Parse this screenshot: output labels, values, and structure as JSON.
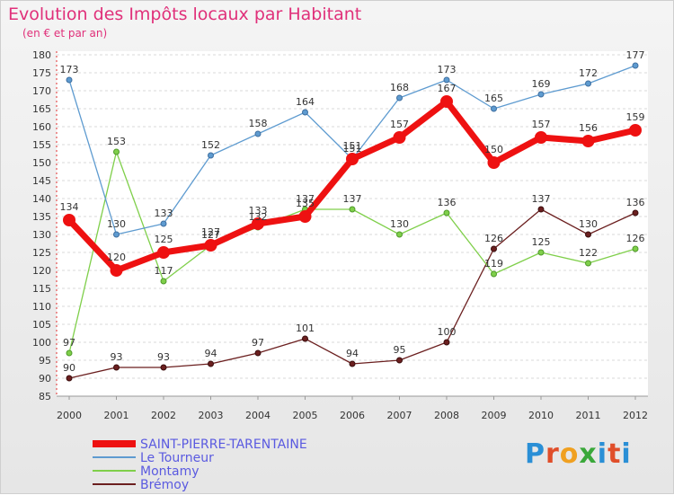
{
  "title": "Evolution des Impôts locaux par Habitant",
  "subtitle": "(en € et par an)",
  "logo": "Proxiti",
  "chart_data": {
    "type": "line",
    "title": "Evolution des Impôts locaux par Habitant",
    "subtitle": "(en € et par an)",
    "xlabel": "",
    "ylabel": "",
    "ylim": [
      85,
      180
    ],
    "yticks": [
      85,
      90,
      95,
      100,
      105,
      110,
      115,
      120,
      125,
      130,
      135,
      140,
      145,
      150,
      155,
      160,
      165,
      170,
      175,
      180
    ],
    "categories": [
      "2000",
      "2001",
      "2002",
      "2003",
      "2004",
      "2005",
      "2006",
      "2007",
      "2008",
      "2009",
      "2010",
      "2011",
      "2012"
    ],
    "series": [
      {
        "name": "SAINT-PIERRE-TARENTAINE",
        "color": "#ee1111",
        "values": [
          134,
          120,
          125,
          127,
          133,
          135,
          151,
          157,
          167,
          150,
          157,
          156,
          159
        ]
      },
      {
        "name": "Le Tourneur",
        "color": "#5e9bd0",
        "values": [
          173,
          130,
          133,
          152,
          158,
          164,
          151,
          168,
          173,
          165,
          169,
          172,
          177
        ]
      },
      {
        "name": "Montamy",
        "color": "#7fcf4a",
        "values": [
          97,
          153,
          117,
          127,
          132,
          137,
          137,
          130,
          136,
          119,
          125,
          122,
          126
        ]
      },
      {
        "name": "Brémoy",
        "color": "#6b1f1f",
        "values": [
          90,
          93,
          93,
          94,
          97,
          101,
          94,
          95,
          100,
          126,
          137,
          130,
          136
        ]
      }
    ],
    "legend": "bottom-left"
  }
}
